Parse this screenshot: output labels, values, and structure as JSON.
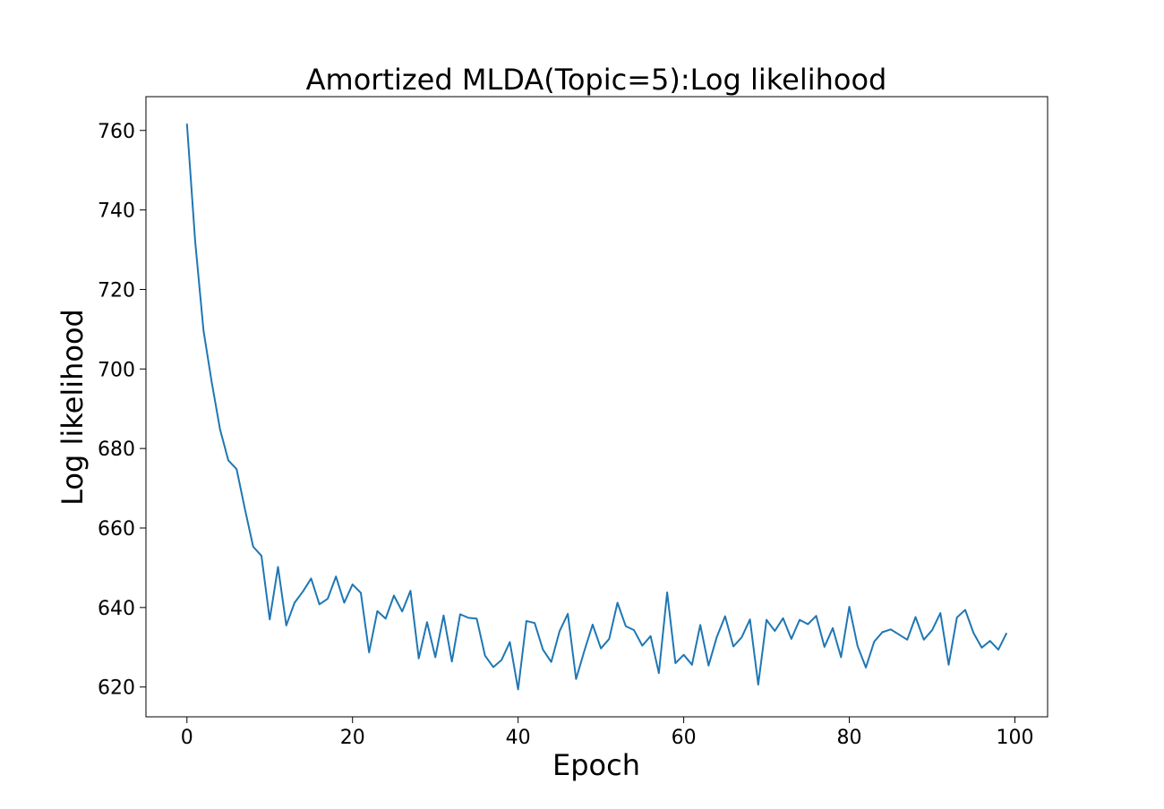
{
  "chart_data": {
    "type": "line",
    "title": "Amortized MLDA(Topic=5):Log likelihood",
    "xlabel": "Epoch",
    "ylabel": "Log likelihood",
    "xlim": [
      -4.95,
      103.95
    ],
    "ylim": [
      612.5,
      768.5
    ],
    "xticks": [
      0,
      20,
      40,
      60,
      80,
      100
    ],
    "yticks": [
      620,
      640,
      660,
      680,
      700,
      720,
      740,
      760
    ],
    "grid": false,
    "line_color": "#1f77b4",
    "series": [
      {
        "x": [
          0,
          1,
          2,
          3,
          4,
          5,
          6,
          7,
          8,
          9,
          10,
          11,
          12,
          13,
          14,
          15,
          16,
          17,
          18,
          19,
          20,
          21,
          22,
          23,
          24,
          25,
          26,
          27,
          28,
          29,
          30,
          31,
          32,
          33,
          34,
          35,
          36,
          37,
          38,
          39,
          40,
          41,
          42,
          43,
          44,
          45,
          46,
          47,
          48,
          49,
          50,
          51,
          52,
          53,
          54,
          55,
          56,
          57,
          58,
          59,
          60,
          61,
          62,
          63,
          64,
          65,
          66,
          67,
          68,
          69,
          70,
          71,
          72,
          73,
          74,
          75,
          76,
          77,
          78,
          79,
          80,
          81,
          82,
          83,
          84,
          85,
          86,
          87,
          88,
          89,
          90,
          91,
          92,
          93,
          94,
          95,
          96,
          97,
          98,
          99
        ],
        "values": [
          761.7,
          732.0,
          709.7,
          696.6,
          684.8,
          677.0,
          674.8,
          664.8,
          655.3,
          653.0,
          637.0,
          650.2,
          635.5,
          641.2,
          644.0,
          647.3,
          640.8,
          642.2,
          647.8,
          641.2,
          645.8,
          643.7,
          628.7,
          639.1,
          637.2,
          643.0,
          639.0,
          644.2,
          627.2,
          636.3,
          627.5,
          638.0,
          626.4,
          638.3,
          637.4,
          637.2,
          627.9,
          625.0,
          626.8,
          631.3,
          619.4,
          636.6,
          636.1,
          629.4,
          626.3,
          634.0,
          638.4,
          622.0,
          629.1,
          635.7,
          629.7,
          632.1,
          641.2,
          635.3,
          634.3,
          630.4,
          632.8,
          623.5,
          643.8,
          626.0,
          628.1,
          625.6,
          635.6,
          625.4,
          632.6,
          637.8,
          630.2,
          632.5,
          637.0,
          620.6,
          636.9,
          634.1,
          637.3,
          632.1,
          636.9,
          635.8,
          637.9,
          630.1,
          634.8,
          627.5,
          640.2,
          630.3,
          624.9,
          631.4,
          633.8,
          634.5,
          633.2,
          631.9,
          637.6,
          631.9,
          634.3,
          638.6,
          625.6,
          637.5,
          639.4,
          633.6,
          629.9,
          631.6,
          629.4,
          633.6
        ]
      }
    ]
  }
}
